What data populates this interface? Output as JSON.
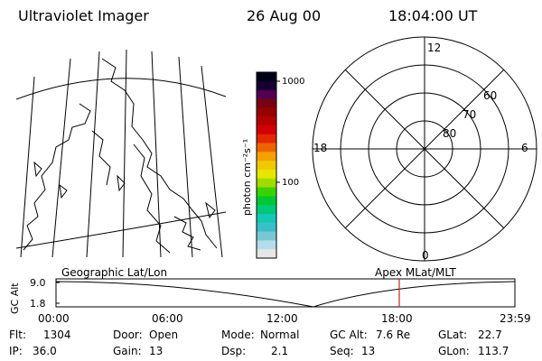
{
  "header": {
    "instrument": "Ultraviolet Imager",
    "date": "26 Aug 00",
    "time": "18:04:00 UT"
  },
  "colorbar": {
    "unit_label": "photon cm⁻²s⁻¹",
    "tick_labels": [
      "1000",
      "100"
    ],
    "colors": [
      "#e6e6e6",
      "#b4dceb",
      "#78c8d2",
      "#3cbec8",
      "#14c8b4",
      "#00c878",
      "#00c832",
      "#3cd200",
      "#a0dc00",
      "#e6e600",
      "#f0c800",
      "#f5a000",
      "#eb6400",
      "#e12800",
      "#d20000",
      "#b40000",
      "#960000",
      "#780014",
      "#500050",
      "#140032",
      "#000014"
    ]
  },
  "geo_map": {
    "label": "Geographic Lat/Lon",
    "land_outline_color": "#000000"
  },
  "polar_plot": {
    "label": "Apex MLat/MLT",
    "mlt_labels": {
      "top": "12",
      "left": "18",
      "right": "6",
      "bottom": "0"
    },
    "mlat_labels": [
      "60",
      "70",
      "80"
    ]
  },
  "altitude_strip": {
    "ylabel": "GC Alt",
    "y_ticks": [
      "9.0",
      "1.8"
    ],
    "x_ticks": [
      "00:00",
      "06:00",
      "12:00",
      "18:00",
      "23:59"
    ],
    "marker_color": "#cc2222"
  },
  "status": {
    "flt": {
      "label": "Flt:",
      "value": "1304"
    },
    "ip": {
      "label": "IP:",
      "value": "36.0"
    },
    "door": {
      "label": "Door:",
      "value": "Open"
    },
    "gain": {
      "label": "Gain:",
      "value": "13"
    },
    "mode": {
      "label": "Mode:",
      "value": "Normal"
    },
    "dsp": {
      "label": "Dsp:",
      "value": "2.1"
    },
    "gcalt": {
      "label": "GC Alt:",
      "value": "7.6 Re"
    },
    "seq": {
      "label": "Seq:",
      "value": "13"
    },
    "glat": {
      "label": "GLat:",
      "value": "22.7"
    },
    "glon": {
      "label": "GLon:",
      "value": "113.7"
    }
  }
}
